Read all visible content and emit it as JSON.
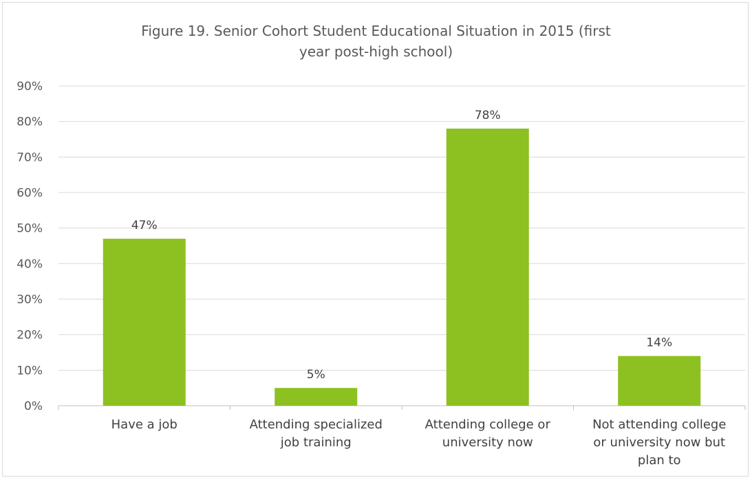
{
  "chart_data": {
    "type": "bar",
    "title_lines": [
      "Figure 19. Senior Cohort Student Educational Situation in 2015 (first",
      "year post-high school)"
    ],
    "categories": [
      [
        "Have a job"
      ],
      [
        "Attending specialized",
        "job training"
      ],
      [
        "Attending college or",
        "university now"
      ],
      [
        "Not attending college",
        "or university now but",
        "plan to"
      ]
    ],
    "values": [
      47,
      5,
      78,
      14
    ],
    "data_labels": [
      "47%",
      "5%",
      "78%",
      "14%"
    ],
    "y_ticks": [
      "0%",
      "10%",
      "20%",
      "30%",
      "40%",
      "50%",
      "60%",
      "70%",
      "80%",
      "90%"
    ],
    "ylim": [
      0,
      90
    ],
    "grid": true,
    "legend": "none",
    "bar_color": "#8dc021"
  }
}
